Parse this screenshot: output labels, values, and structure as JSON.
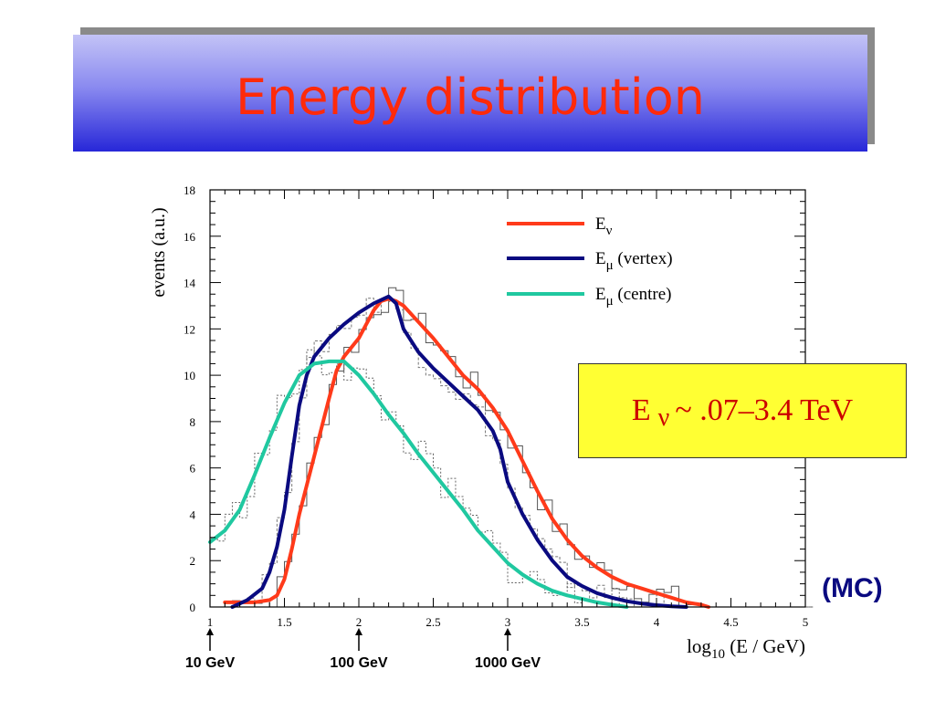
{
  "page_title": "Energy distribution",
  "energy_box": {
    "prefix": "E",
    "nu": "ν",
    "suffix": "~ .07–3.4 TeV"
  },
  "mc_label": "(MC)",
  "energy_markers": [
    {
      "x": 1,
      "label": "10 GeV"
    },
    {
      "x": 2,
      "label": "100 GeV"
    },
    {
      "x": 3,
      "label": "1000 GeV"
    }
  ],
  "chart_data": {
    "type": "line",
    "title": "",
    "xlabel": "log10 (E / GeV)",
    "ylabel": "events (a.u.)",
    "xlim": [
      1,
      5
    ],
    "ylim": [
      0,
      18
    ],
    "xticks": [
      1,
      1.5,
      2,
      2.5,
      3,
      3.5,
      4,
      4.5,
      5
    ],
    "xtick_labels": [
      "1",
      "1.5",
      "2",
      "2.5",
      "3",
      "3.5",
      "4",
      "4.5",
      "5"
    ],
    "yticks": [
      0,
      2,
      4,
      6,
      8,
      10,
      12,
      14,
      16,
      18
    ],
    "ytick_labels": [
      "0",
      "2",
      "4",
      "6",
      "8",
      "10",
      "12",
      "14",
      "16",
      "18"
    ],
    "legend_position": "top-right",
    "series": [
      {
        "name": "E_ν",
        "color": "#ff3a1a",
        "x": [
          1.1,
          1.3,
          1.4,
          1.45,
          1.5,
          1.55,
          1.6,
          1.7,
          1.8,
          1.85,
          1.9,
          2.0,
          2.05,
          2.1,
          2.15,
          2.2,
          2.25,
          2.3,
          2.4,
          2.5,
          2.6,
          2.7,
          2.8,
          2.9,
          3.0,
          3.1,
          3.2,
          3.3,
          3.4,
          3.5,
          3.6,
          3.7,
          3.8,
          3.9,
          4.0,
          4.1,
          4.2,
          4.3,
          4.35
        ],
        "y": [
          0.2,
          0.2,
          0.3,
          0.5,
          1.2,
          2.5,
          4.0,
          6.5,
          9.0,
          10.2,
          10.8,
          11.6,
          12.2,
          12.8,
          13.2,
          13.3,
          13.2,
          13.0,
          12.3,
          11.6,
          10.8,
          10.0,
          9.4,
          8.6,
          7.6,
          6.3,
          5.0,
          3.8,
          2.9,
          2.2,
          1.7,
          1.3,
          1.0,
          0.8,
          0.6,
          0.4,
          0.2,
          0.1,
          0.0
        ]
      },
      {
        "name": "E_μ (vertex)",
        "color": "#0a0a80",
        "x": [
          1.15,
          1.25,
          1.35,
          1.4,
          1.45,
          1.5,
          1.55,
          1.6,
          1.65,
          1.7,
          1.75,
          1.8,
          1.9,
          2.0,
          2.1,
          2.2,
          2.25,
          2.3,
          2.4,
          2.5,
          2.6,
          2.7,
          2.8,
          2.9,
          2.95,
          3.0,
          3.1,
          3.2,
          3.3,
          3.4,
          3.5,
          3.6,
          3.7,
          3.8,
          3.9,
          4.0,
          4.1,
          4.2
        ],
        "y": [
          0.0,
          0.3,
          0.8,
          1.5,
          2.6,
          4.2,
          6.5,
          8.7,
          10.0,
          10.8,
          11.2,
          11.6,
          12.2,
          12.7,
          13.1,
          13.4,
          13.1,
          12.0,
          11.0,
          10.3,
          9.7,
          9.1,
          8.5,
          7.6,
          6.8,
          5.4,
          4.0,
          2.9,
          2.0,
          1.3,
          0.9,
          0.6,
          0.4,
          0.25,
          0.15,
          0.08,
          0.03,
          0.0
        ]
      },
      {
        "name": "E_μ (centre)",
        "color": "#20c8a0",
        "x": [
          1.0,
          1.1,
          1.2,
          1.3,
          1.4,
          1.5,
          1.6,
          1.7,
          1.8,
          1.9,
          2.0,
          2.1,
          2.2,
          2.3,
          2.4,
          2.5,
          2.6,
          2.7,
          2.8,
          2.9,
          3.0,
          3.1,
          3.2,
          3.3,
          3.4,
          3.5,
          3.6,
          3.7,
          3.8
        ],
        "y": [
          2.8,
          3.3,
          4.2,
          5.7,
          7.3,
          8.8,
          10.0,
          10.5,
          10.6,
          10.6,
          10.0,
          9.2,
          8.3,
          7.5,
          6.6,
          5.8,
          5.0,
          4.2,
          3.3,
          2.6,
          1.9,
          1.4,
          1.0,
          0.7,
          0.5,
          0.35,
          0.2,
          0.1,
          0.0
        ]
      }
    ]
  }
}
